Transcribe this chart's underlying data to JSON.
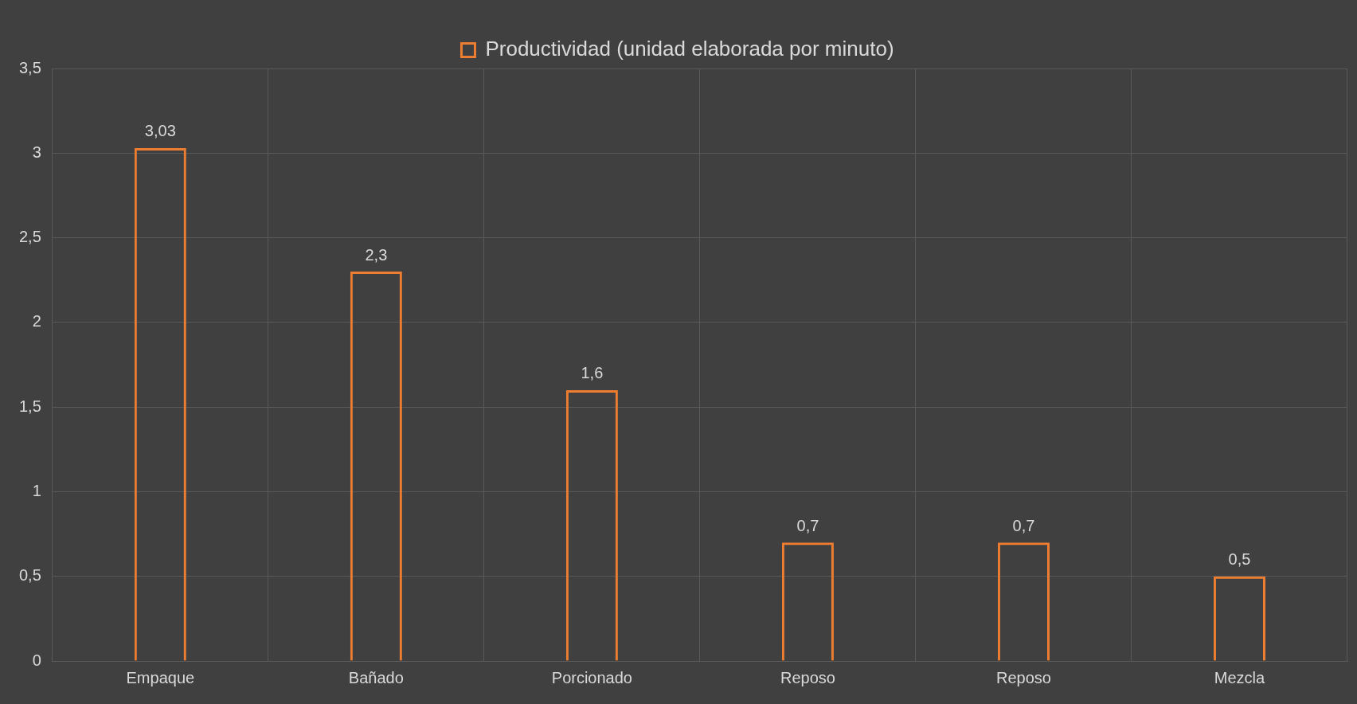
{
  "chart_data": {
    "type": "bar",
    "categories": [
      "Empaque",
      "Bañado",
      "Porcionado",
      "Reposo",
      "Reposo",
      "Mezcla"
    ],
    "series": [
      {
        "name": "Productividad (unidad elaborada por minuto)",
        "color": "#ed7d31",
        "values": [
          3.03,
          2.3,
          1.6,
          0.7,
          0.7,
          0.5
        ],
        "value_labels": [
          "3,03",
          "2,3",
          "1,6",
          "0,7",
          "0,7",
          "0,5"
        ]
      }
    ],
    "ylim": [
      0,
      3.5
    ],
    "yticks": [
      {
        "value": 0,
        "label": "0"
      },
      {
        "value": 0.5,
        "label": "0,5"
      },
      {
        "value": 1,
        "label": "1"
      },
      {
        "value": 1.5,
        "label": "1,5"
      },
      {
        "value": 2,
        "label": "2"
      },
      {
        "value": 2.5,
        "label": "2,5"
      },
      {
        "value": 3,
        "label": "3"
      },
      {
        "value": 3.5,
        "label": "3,5"
      }
    ],
    "grid": true,
    "legend": "top"
  }
}
